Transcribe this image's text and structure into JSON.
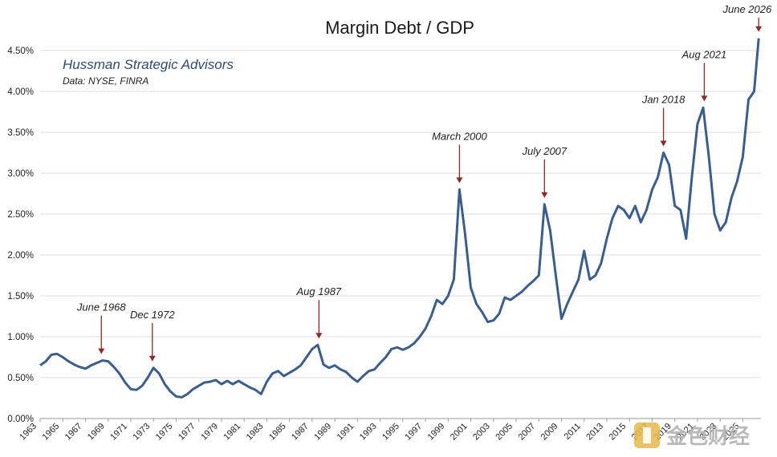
{
  "chart_data": {
    "type": "line",
    "title": "Margin Debt / GDP",
    "source_line1": "Hussman Strategic Advisors",
    "source_line2": "Data: NYSE, FINRA",
    "xlabel": "",
    "ylabel": "",
    "xlim": [
      1963,
      2026.6
    ],
    "ylim": [
      0,
      4.5
    ],
    "y_ticks": [
      "0.00%",
      "0.50%",
      "1.00%",
      "1.50%",
      "2.00%",
      "2.50%",
      "3.00%",
      "3.50%",
      "4.00%",
      "4.50%"
    ],
    "x_ticks": [
      "1963",
      "1965",
      "1967",
      "1969",
      "1971",
      "1973",
      "1975",
      "1977",
      "1979",
      "1981",
      "1983",
      "1985",
      "1987",
      "1989",
      "1991",
      "1993",
      "1995",
      "1997",
      "1999",
      "2001",
      "2003",
      "2005",
      "2007",
      "2009",
      "2011",
      "2013",
      "2015",
      "2017",
      "2019",
      "2021",
      "2023",
      "2025"
    ],
    "grid": true,
    "line_color": "#3b5e8c",
    "arrow_color": "#8b2a2a",
    "series": [
      {
        "values": [
          [
            1963.0,
            0.65
          ],
          [
            1963.5,
            0.7
          ],
          [
            1964.0,
            0.78
          ],
          [
            1964.5,
            0.79
          ],
          [
            1965.0,
            0.75
          ],
          [
            1965.5,
            0.7
          ],
          [
            1966.0,
            0.66
          ],
          [
            1966.5,
            0.63
          ],
          [
            1967.0,
            0.61
          ],
          [
            1967.5,
            0.65
          ],
          [
            1968.0,
            0.68
          ],
          [
            1968.5,
            0.71
          ],
          [
            1969.0,
            0.7
          ],
          [
            1969.5,
            0.63
          ],
          [
            1970.0,
            0.55
          ],
          [
            1970.5,
            0.44
          ],
          [
            1971.0,
            0.36
          ],
          [
            1971.5,
            0.35
          ],
          [
            1972.0,
            0.4
          ],
          [
            1972.5,
            0.5
          ],
          [
            1973.0,
            0.62
          ],
          [
            1973.5,
            0.55
          ],
          [
            1974.0,
            0.42
          ],
          [
            1974.5,
            0.33
          ],
          [
            1975.0,
            0.27
          ],
          [
            1975.5,
            0.26
          ],
          [
            1976.0,
            0.3
          ],
          [
            1976.5,
            0.36
          ],
          [
            1977.0,
            0.4
          ],
          [
            1977.5,
            0.44
          ],
          [
            1978.0,
            0.45
          ],
          [
            1978.5,
            0.47
          ],
          [
            1979.0,
            0.42
          ],
          [
            1979.5,
            0.46
          ],
          [
            1980.0,
            0.42
          ],
          [
            1980.5,
            0.46
          ],
          [
            1981.0,
            0.42
          ],
          [
            1981.5,
            0.38
          ],
          [
            1982.0,
            0.35
          ],
          [
            1982.5,
            0.3
          ],
          [
            1983.0,
            0.45
          ],
          [
            1983.5,
            0.55
          ],
          [
            1984.0,
            0.58
          ],
          [
            1984.5,
            0.52
          ],
          [
            1985.0,
            0.56
          ],
          [
            1985.5,
            0.6
          ],
          [
            1986.0,
            0.65
          ],
          [
            1986.5,
            0.75
          ],
          [
            1987.0,
            0.85
          ],
          [
            1987.5,
            0.9
          ],
          [
            1988.0,
            0.66
          ],
          [
            1988.5,
            0.62
          ],
          [
            1989.0,
            0.65
          ],
          [
            1989.5,
            0.6
          ],
          [
            1990.0,
            0.57
          ],
          [
            1990.5,
            0.5
          ],
          [
            1991.0,
            0.45
          ],
          [
            1991.5,
            0.52
          ],
          [
            1992.0,
            0.58
          ],
          [
            1992.5,
            0.6
          ],
          [
            1993.0,
            0.68
          ],
          [
            1993.5,
            0.75
          ],
          [
            1994.0,
            0.85
          ],
          [
            1994.5,
            0.87
          ],
          [
            1995.0,
            0.84
          ],
          [
            1995.5,
            0.87
          ],
          [
            1996.0,
            0.92
          ],
          [
            1996.5,
            1.0
          ],
          [
            1997.0,
            1.1
          ],
          [
            1997.5,
            1.25
          ],
          [
            1998.0,
            1.45
          ],
          [
            1998.5,
            1.4
          ],
          [
            1999.0,
            1.5
          ],
          [
            1999.5,
            1.7
          ],
          [
            2000.0,
            2.8
          ],
          [
            2000.5,
            2.25
          ],
          [
            2001.0,
            1.6
          ],
          [
            2001.5,
            1.4
          ],
          [
            2002.0,
            1.3
          ],
          [
            2002.5,
            1.18
          ],
          [
            2003.0,
            1.2
          ],
          [
            2003.5,
            1.28
          ],
          [
            2004.0,
            1.48
          ],
          [
            2004.5,
            1.45
          ],
          [
            2005.0,
            1.5
          ],
          [
            2005.5,
            1.55
          ],
          [
            2006.0,
            1.62
          ],
          [
            2006.5,
            1.68
          ],
          [
            2007.0,
            1.75
          ],
          [
            2007.5,
            2.62
          ],
          [
            2008.0,
            2.3
          ],
          [
            2008.5,
            1.75
          ],
          [
            2009.0,
            1.22
          ],
          [
            2009.5,
            1.4
          ],
          [
            2010.0,
            1.55
          ],
          [
            2010.5,
            1.7
          ],
          [
            2011.0,
            2.05
          ],
          [
            2011.5,
            1.7
          ],
          [
            2012.0,
            1.75
          ],
          [
            2012.5,
            1.9
          ],
          [
            2013.0,
            2.2
          ],
          [
            2013.5,
            2.45
          ],
          [
            2014.0,
            2.6
          ],
          [
            2014.5,
            2.55
          ],
          [
            2015.0,
            2.45
          ],
          [
            2015.5,
            2.6
          ],
          [
            2016.0,
            2.4
          ],
          [
            2016.5,
            2.55
          ],
          [
            2017.0,
            2.8
          ],
          [
            2017.5,
            2.95
          ],
          [
            2018.0,
            3.25
          ],
          [
            2018.5,
            3.1
          ],
          [
            2019.0,
            2.6
          ],
          [
            2019.5,
            2.55
          ],
          [
            2020.0,
            2.2
          ],
          [
            2020.5,
            2.95
          ],
          [
            2021.0,
            3.6
          ],
          [
            2021.5,
            3.8
          ],
          [
            2022.0,
            3.2
          ],
          [
            2022.5,
            2.5
          ],
          [
            2023.0,
            2.3
          ],
          [
            2023.5,
            2.4
          ],
          [
            2024.0,
            2.7
          ],
          [
            2024.5,
            2.9
          ],
          [
            2025.0,
            3.2
          ],
          [
            2025.5,
            3.9
          ],
          [
            2026.0,
            4.0
          ],
          [
            2026.4,
            4.65
          ]
        ]
      }
    ],
    "annotations": [
      {
        "label": "June 1968",
        "x": 1968.4,
        "y": 0.71
      },
      {
        "label": "Dec 1972",
        "x": 1972.9,
        "y": 0.62
      },
      {
        "label": "Aug 1987",
        "x": 1987.6,
        "y": 0.9
      },
      {
        "label": "March 2000",
        "x": 2000.0,
        "y": 2.8
      },
      {
        "label": "July 2007",
        "x": 2007.5,
        "y": 2.62
      },
      {
        "label": "Jan 2018",
        "x": 2018.0,
        "y": 3.25
      },
      {
        "label": "Aug 2021",
        "x": 2021.6,
        "y": 3.8
      },
      {
        "label": "June 2026",
        "x": 2026.4,
        "y": 4.65
      }
    ],
    "legend": "none"
  },
  "watermark": {
    "text": "金色财经"
  }
}
